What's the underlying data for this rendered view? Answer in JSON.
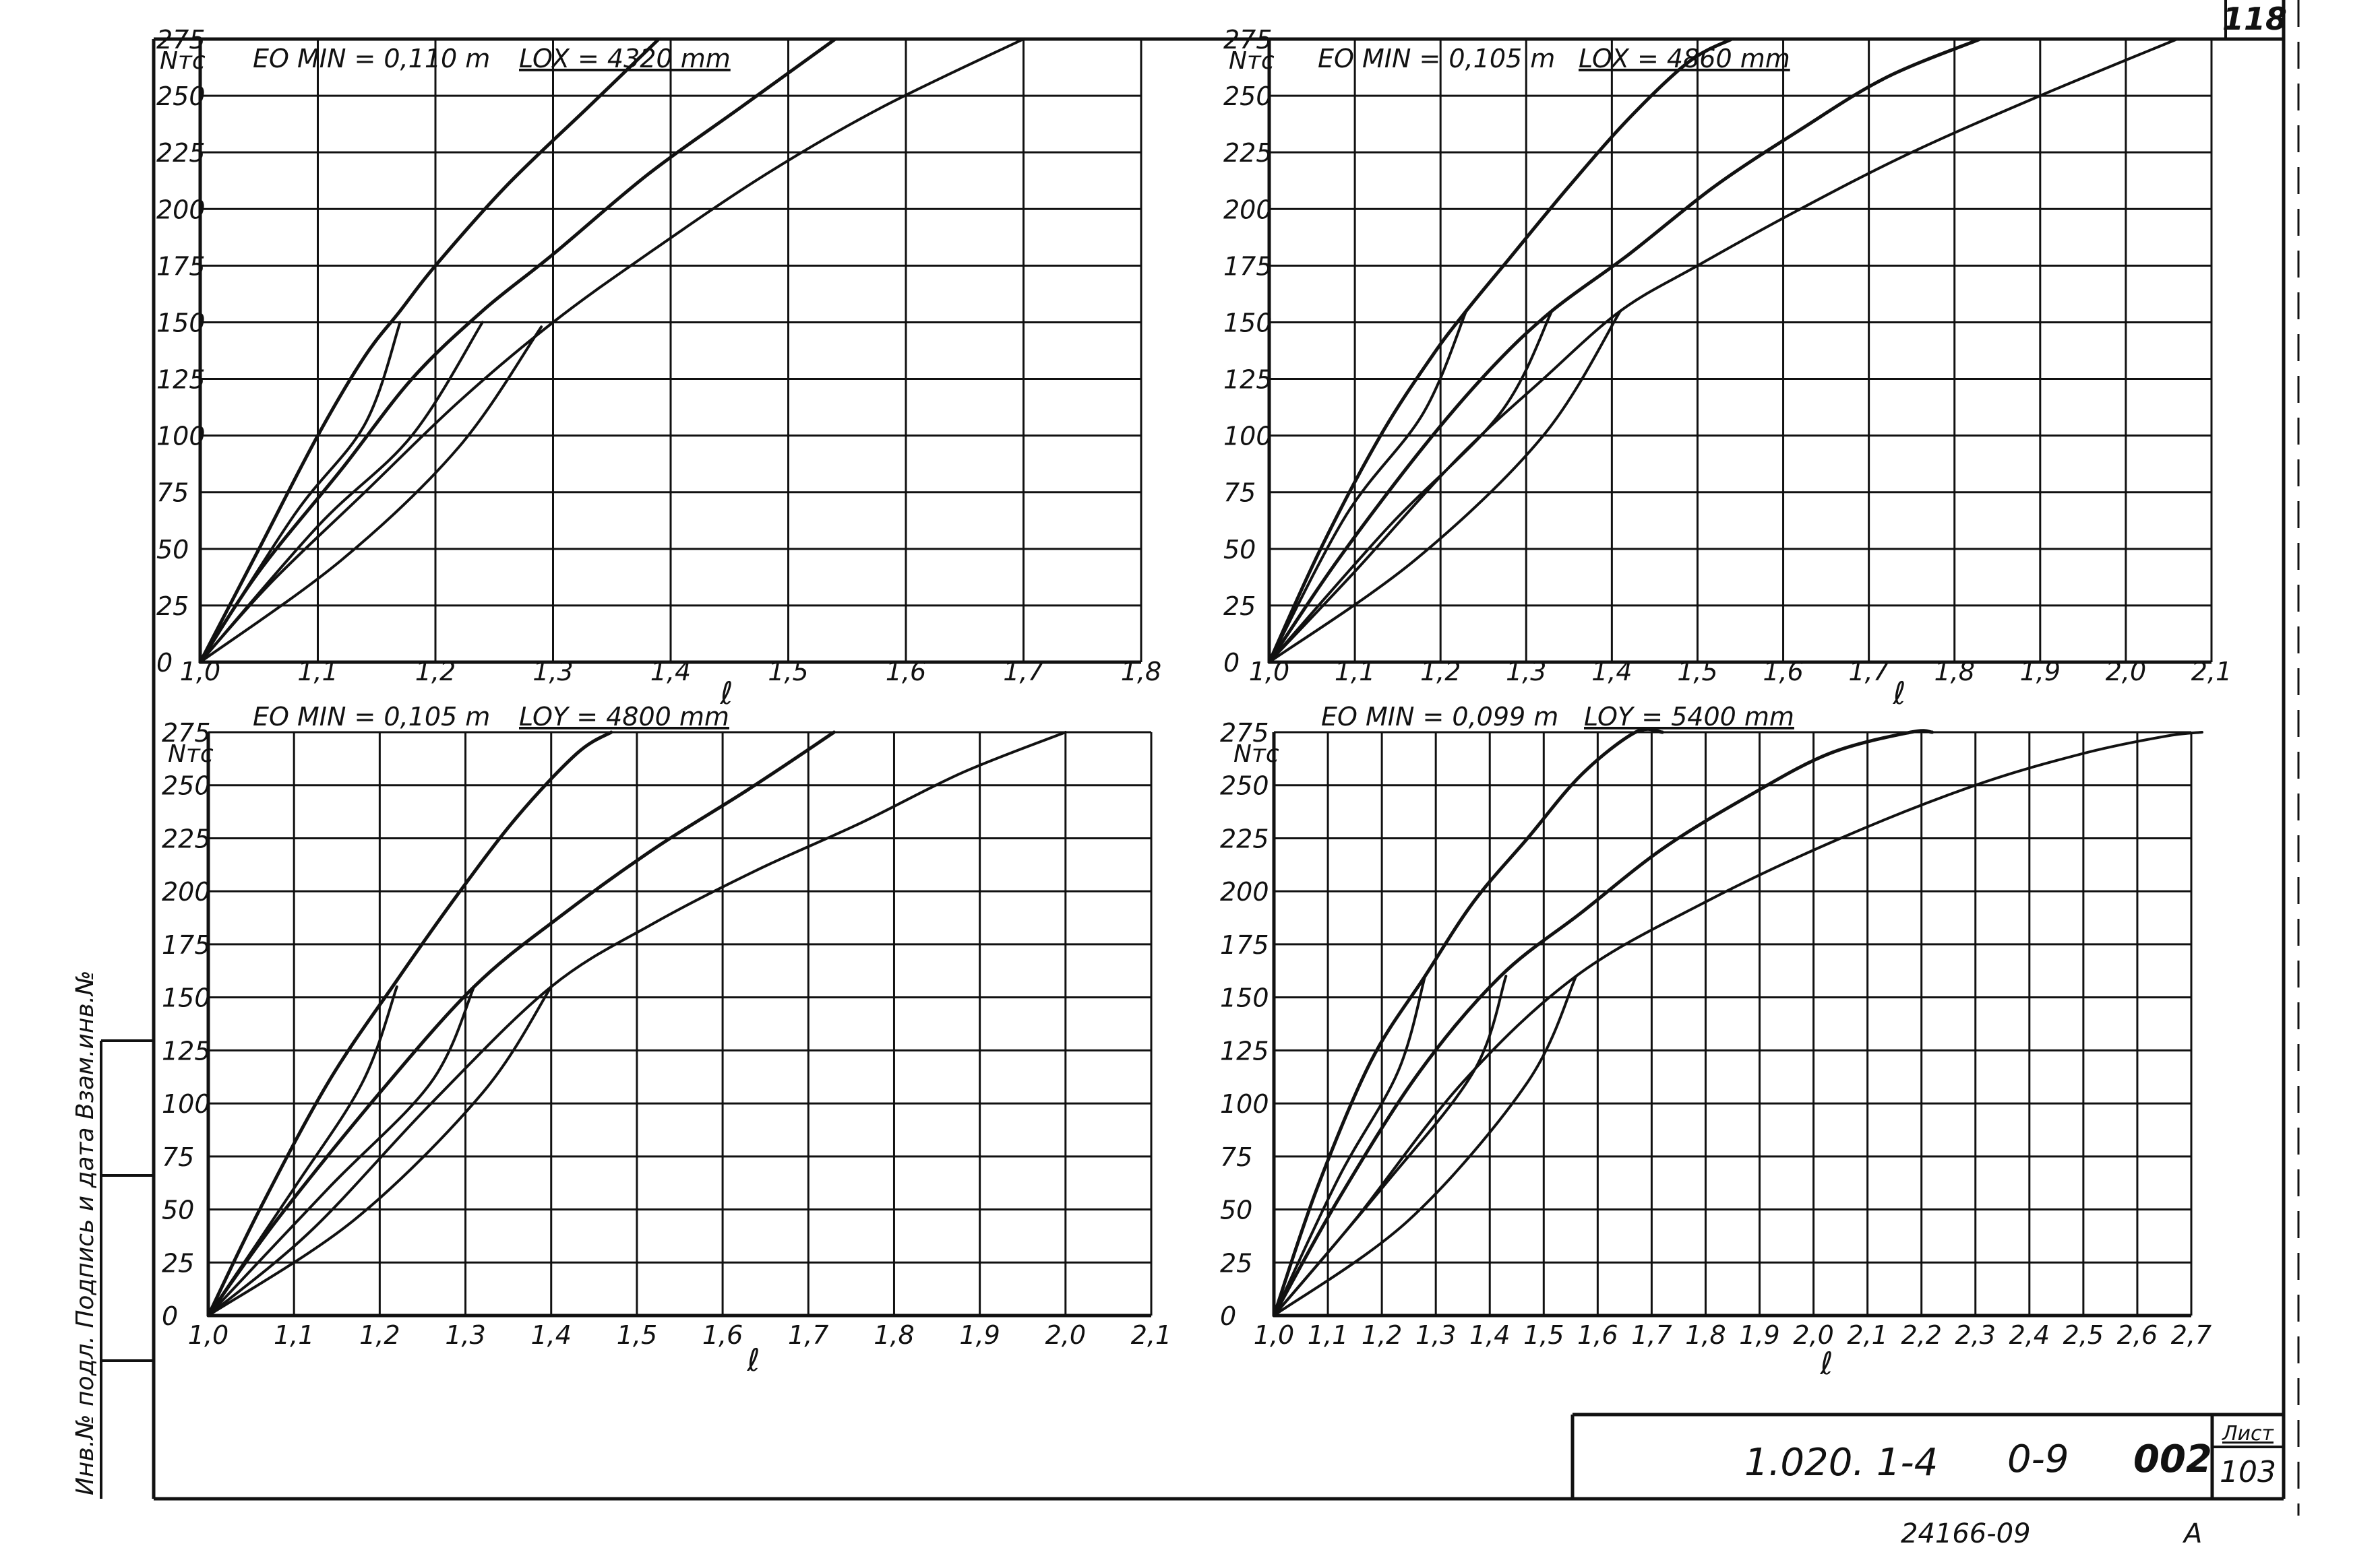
{
  "sheet": {
    "page_number": "118",
    "doc_code": "1.020. 1-4",
    "drawing_code": "0-9",
    "drawing_number": "002",
    "sheet_label": "Лист",
    "sheet_number": "103",
    "archive_number": "24166-09",
    "archive_letter": "A",
    "side_stamp": "Инв.№ подл. Подпись и дата Взам.инв.№"
  },
  "chart_data": [
    {
      "type": "line",
      "y_label": "Nтс",
      "x_label": "ℓ",
      "param1": "EO MIN = 0,110 m",
      "param2": "LOX = 4320 mm",
      "x_ticks": [
        "1,0",
        "1,1",
        "1,2",
        "1,3",
        "1,4",
        "1,5",
        "1,6",
        "1,7",
        "1,8"
      ],
      "y_ticks": [
        "0",
        "25",
        "50",
        "75",
        "100",
        "125",
        "150",
        "175",
        "200",
        "225",
        "250",
        "275"
      ],
      "xlim": [
        1.0,
        1.8
      ],
      "ylim": [
        0,
        275
      ],
      "grid": true,
      "series": [
        {
          "x": [
            1.0,
            1.05,
            1.1,
            1.14,
            1.17,
            1.2,
            1.26,
            1.33,
            1.39
          ],
          "y": [
            0,
            50,
            100,
            135,
            155,
            175,
            210,
            245,
            275
          ],
          "width": 5
        },
        {
          "x": [
            1.0,
            1.05,
            1.12,
            1.18,
            1.24,
            1.3,
            1.38,
            1.46,
            1.54
          ],
          "y": [
            0,
            40,
            85,
            125,
            155,
            180,
            215,
            245,
            275
          ],
          "width": 5
        },
        {
          "x": [
            1.0,
            1.06,
            1.14,
            1.22,
            1.3,
            1.38,
            1.48,
            1.58,
            1.7
          ],
          "y": [
            0,
            35,
            75,
            115,
            150,
            180,
            215,
            245,
            275
          ],
          "width": 4
        },
        {
          "x": [
            1.0,
            1.08,
            1.14,
            1.17
          ],
          "y": [
            0,
            65,
            105,
            150
          ],
          "width": 4
        },
        {
          "x": [
            1.0,
            1.1,
            1.18,
            1.24
          ],
          "y": [
            0,
            60,
            100,
            150
          ],
          "width": 4
        },
        {
          "x": [
            1.0,
            1.12,
            1.22,
            1.29
          ],
          "y": [
            0,
            45,
            95,
            148
          ],
          "width": 4
        }
      ]
    },
    {
      "type": "line",
      "y_label": "Nтс",
      "x_label": "ℓ",
      "param1": "EO MIN = 0,105 m",
      "param2": "LOX = 4860 mm",
      "x_ticks": [
        "1,0",
        "1,1",
        "1,2",
        "1,3",
        "1,4",
        "1,5",
        "1,6",
        "1,7",
        "1,8",
        "1,9",
        "2,0",
        "2,1"
      ],
      "y_ticks": [
        "0",
        "25",
        "50",
        "75",
        "100",
        "125",
        "150",
        "175",
        "200",
        "225",
        "250",
        "275"
      ],
      "xlim": [
        1.0,
        2.1
      ],
      "ylim": [
        0,
        275
      ],
      "grid": true,
      "series": [
        {
          "x": [
            1.0,
            1.06,
            1.13,
            1.19,
            1.23,
            1.28,
            1.35,
            1.42,
            1.49,
            1.54
          ],
          "y": [
            0,
            50,
            100,
            135,
            155,
            178,
            210,
            240,
            265,
            275
          ],
          "width": 5
        },
        {
          "x": [
            1.0,
            1.08,
            1.18,
            1.26,
            1.33,
            1.42,
            1.52,
            1.62,
            1.72,
            1.83
          ],
          "y": [
            0,
            45,
            95,
            130,
            155,
            180,
            210,
            235,
            258,
            275
          ],
          "width": 5
        },
        {
          "x": [
            1.0,
            1.1,
            1.22,
            1.32,
            1.41,
            1.5,
            1.62,
            1.75,
            1.9,
            2.06
          ],
          "y": [
            0,
            40,
            90,
            125,
            155,
            175,
            200,
            225,
            250,
            275
          ],
          "width": 4
        },
        {
          "x": [
            1.0,
            1.09,
            1.18,
            1.23
          ],
          "y": [
            0,
            65,
            110,
            155
          ],
          "width": 4
        },
        {
          "x": [
            1.0,
            1.14,
            1.27,
            1.33
          ],
          "y": [
            0,
            60,
            110,
            155
          ],
          "width": 4
        },
        {
          "x": [
            1.0,
            1.17,
            1.32,
            1.41
          ],
          "y": [
            0,
            45,
            100,
            155
          ],
          "width": 4
        }
      ]
    },
    {
      "type": "line",
      "y_label": "Nтс",
      "x_label": "ℓ",
      "param1": "EO MIN = 0,105 m",
      "param2": "LOY = 4800 mm",
      "x_ticks": [
        "1,0",
        "1,1",
        "1,2",
        "1,3",
        "1,4",
        "1,5",
        "1,6",
        "1,7",
        "1,8",
        "1,9",
        "2,0",
        "2,1"
      ],
      "y_ticks": [
        "0",
        "25",
        "50",
        "75",
        "100",
        "125",
        "150",
        "175",
        "200",
        "225",
        "250",
        "275"
      ],
      "xlim": [
        1.0,
        2.1
      ],
      "ylim": [
        0,
        275
      ],
      "grid": true,
      "series": [
        {
          "x": [
            1.0,
            1.06,
            1.14,
            1.22,
            1.29,
            1.36,
            1.43,
            1.47
          ],
          "y": [
            0,
            50,
            110,
            158,
            198,
            235,
            265,
            275
          ],
          "width": 5
        },
        {
          "x": [
            1.0,
            1.08,
            1.2,
            1.31,
            1.41,
            1.52,
            1.63,
            1.73
          ],
          "y": [
            0,
            45,
            105,
            155,
            188,
            220,
            248,
            275
          ],
          "width": 5
        },
        {
          "x": [
            1.0,
            1.12,
            1.26,
            1.4,
            1.52,
            1.64,
            1.76,
            1.88,
            2.0
          ],
          "y": [
            0,
            40,
            100,
            155,
            185,
            210,
            232,
            256,
            275
          ],
          "width": 4
        },
        {
          "x": [
            1.0,
            1.1,
            1.18,
            1.22
          ],
          "y": [
            0,
            60,
            110,
            155
          ],
          "width": 4
        },
        {
          "x": [
            1.0,
            1.14,
            1.26,
            1.31
          ],
          "y": [
            0,
            60,
            110,
            155
          ],
          "width": 4
        },
        {
          "x": [
            1.0,
            1.17,
            1.32,
            1.4
          ],
          "y": [
            0,
            45,
            105,
            155
          ],
          "width": 4
        }
      ]
    },
    {
      "type": "line",
      "y_label": "Nтс",
      "x_label": "ℓ",
      "param1": "EO MIN = 0,099 m",
      "param2": "LOY = 5400 mm",
      "x_ticks": [
        "1,0",
        "1,1",
        "1,2",
        "1,3",
        "1,4",
        "1,5",
        "1,6",
        "1,7",
        "1,8",
        "1,9",
        "2,0",
        "2,1",
        "2,2",
        "2,3",
        "2,4",
        "2,5",
        "2,6",
        "2,7"
      ],
      "y_ticks": [
        "0",
        "25",
        "50",
        "75",
        "100",
        "125",
        "150",
        "175",
        "200",
        "225",
        "250",
        "275"
      ],
      "xlim": [
        1.0,
        2.7
      ],
      "ylim": [
        0,
        275
      ],
      "grid": true,
      "series": [
        {
          "x": [
            1.0,
            1.08,
            1.18,
            1.28,
            1.37,
            1.47,
            1.57,
            1.67,
            1.72
          ],
          "y": [
            0,
            60,
            120,
            160,
            195,
            225,
            255,
            275,
            275
          ],
          "width": 5
        },
        {
          "x": [
            1.0,
            1.12,
            1.27,
            1.42,
            1.57,
            1.72,
            1.88,
            2.03,
            2.18,
            2.22
          ],
          "y": [
            0,
            55,
            115,
            160,
            190,
            220,
            245,
            265,
            275,
            275
          ],
          "width": 5
        },
        {
          "x": [
            1.0,
            1.15,
            1.35,
            1.56,
            1.8,
            2.05,
            2.3,
            2.5,
            2.65,
            2.72
          ],
          "y": [
            0,
            45,
            110,
            160,
            195,
            225,
            250,
            265,
            273,
            275
          ],
          "width": 4
        },
        {
          "x": [
            1.0,
            1.12,
            1.23,
            1.28
          ],
          "y": [
            0,
            65,
            115,
            160
          ],
          "width": 4
        },
        {
          "x": [
            1.0,
            1.2,
            1.37,
            1.43
          ],
          "y": [
            0,
            60,
            115,
            160
          ],
          "width": 4
        },
        {
          "x": [
            1.0,
            1.25,
            1.47,
            1.56
          ],
          "y": [
            0,
            45,
            110,
            160
          ],
          "width": 4
        }
      ]
    }
  ]
}
